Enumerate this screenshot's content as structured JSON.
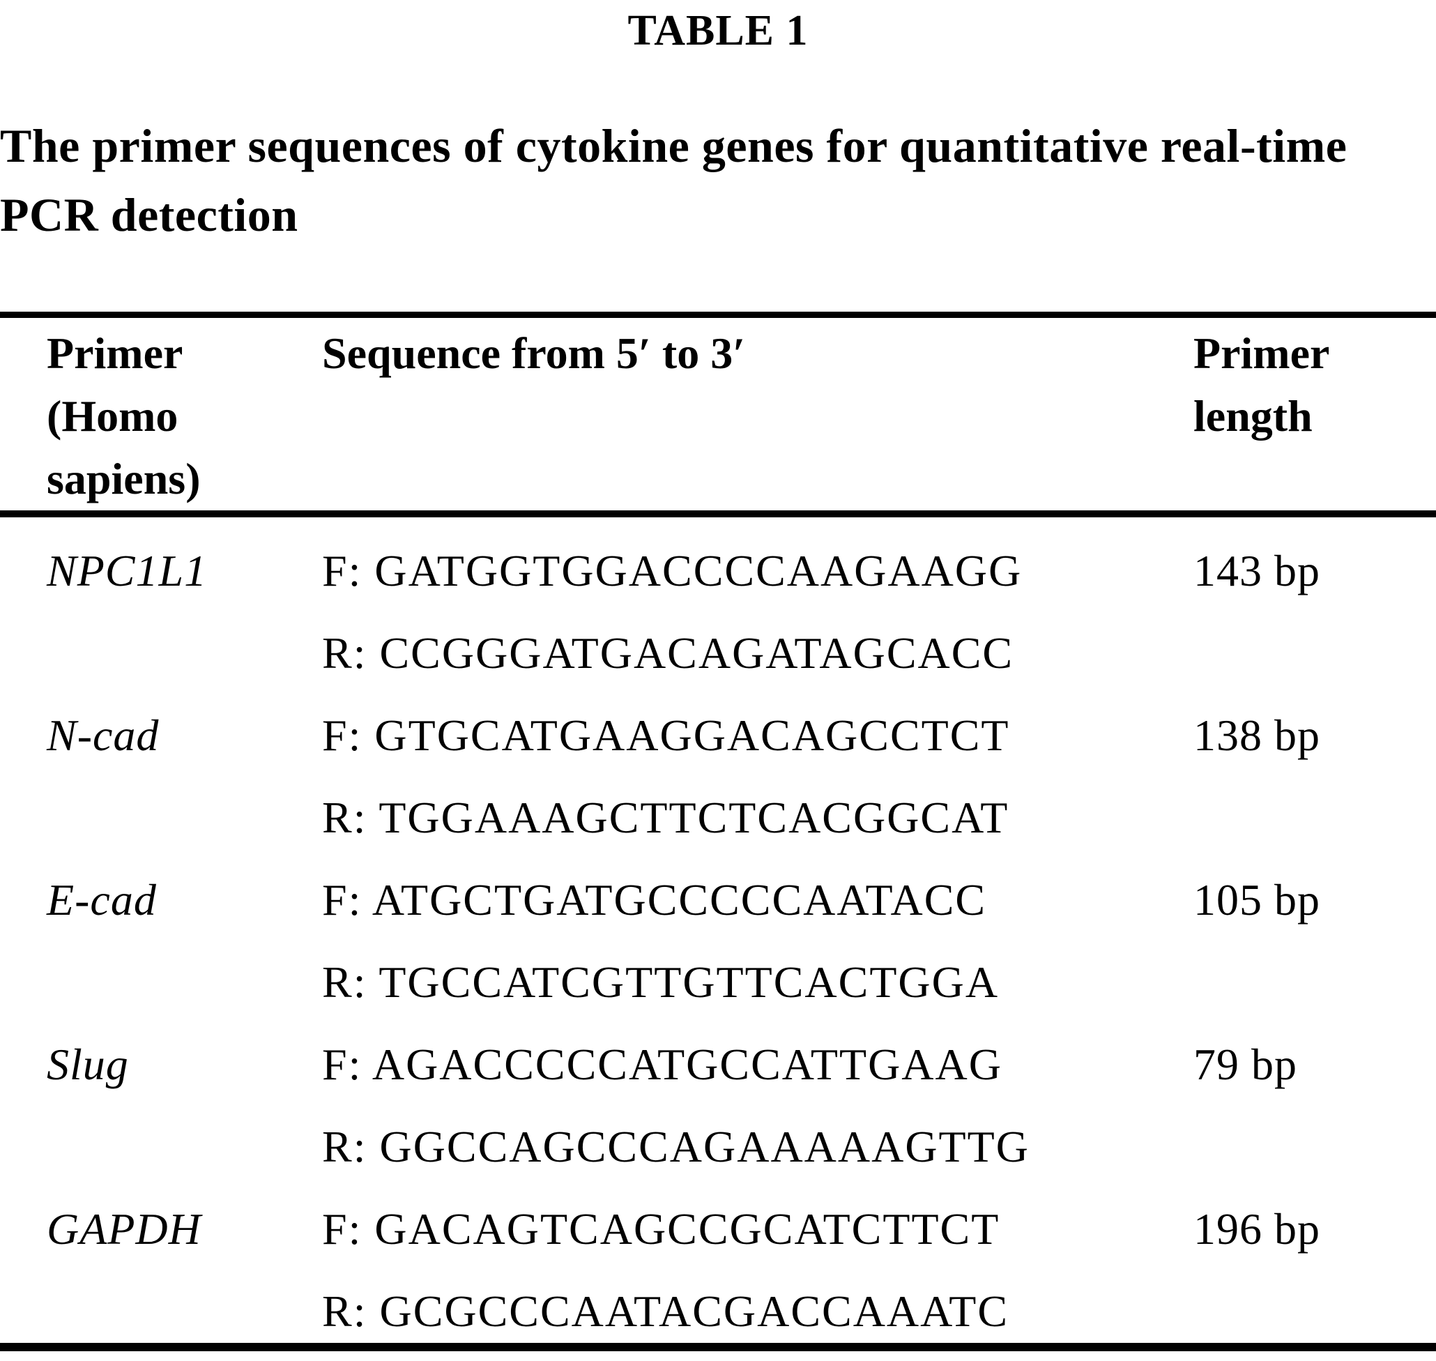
{
  "table_label": "TABLE 1",
  "caption": {
    "line1": "The primer sequences of cytokine genes for quantitative real-time",
    "line2": "PCR detection"
  },
  "columns": {
    "primer_header": [
      "Primer",
      "(Homo",
      "sapiens)"
    ],
    "sequence_header": "Sequence from 5′ to 3′",
    "length_header": [
      "Primer",
      "length"
    ]
  },
  "rows": [
    {
      "gene": "NPC1L1",
      "forward": "F: GATGGTGGACCCCAAGAAGG",
      "reverse": "R: CCGGGATGACAGATAGCACC",
      "length": "143 bp"
    },
    {
      "gene": "N-cad",
      "forward": "F: GTGCATGAAGGACAGCCTCT",
      "reverse": "R: TGGAAAGCTTCTCACGGCAT",
      "length": "138 bp"
    },
    {
      "gene": "E-cad",
      "forward": "F: ATGCTGATGCCCCCAATACC",
      "reverse": "R: TGCCATCGTTGTTCACTGGA",
      "length": "105 bp"
    },
    {
      "gene": "Slug",
      "forward": "F: AGACCCCCATGCCATTGAAG",
      "reverse": "R: GGCCAGCCCAGAAAAAGTTG",
      "length": "79 bp"
    },
    {
      "gene": "GAPDH",
      "forward": "F: GACAGTCAGCCGCATCTTCT",
      "reverse": "R: GCGCCCAATACGACCAAATC",
      "length": "196 bp"
    }
  ],
  "colors": {
    "text": "#000000",
    "background": "#ffffff"
  }
}
